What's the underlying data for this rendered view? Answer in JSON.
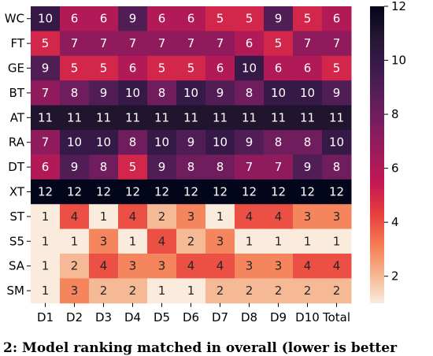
{
  "chart_data": {
    "type": "heatmap",
    "rows": [
      "WC",
      "FT",
      "GE",
      "BT",
      "AT",
      "RA",
      "DT",
      "XT",
      "ST",
      "S5",
      "SA",
      "SM"
    ],
    "columns": [
      "D1",
      "D2",
      "D3",
      "D4",
      "D5",
      "D6",
      "D7",
      "D8",
      "D9",
      "D10",
      "Total"
    ],
    "values": [
      [
        10,
        6,
        6,
        9,
        6,
        6,
        5,
        5,
        9,
        5,
        6
      ],
      [
        5,
        7,
        7,
        7,
        7,
        7,
        7,
        6,
        5,
        7,
        7
      ],
      [
        9,
        5,
        5,
        6,
        5,
        5,
        6,
        10,
        6,
        6,
        5
      ],
      [
        7,
        8,
        9,
        10,
        8,
        10,
        9,
        8,
        10,
        10,
        9
      ],
      [
        11,
        11,
        11,
        11,
        11,
        11,
        11,
        11,
        11,
        11,
        11
      ],
      [
        7,
        10,
        10,
        8,
        10,
        9,
        10,
        9,
        8,
        8,
        10
      ],
      [
        6,
        9,
        8,
        5,
        9,
        8,
        8,
        7,
        7,
        9,
        8
      ],
      [
        12,
        12,
        12,
        12,
        12,
        12,
        12,
        12,
        12,
        12,
        12
      ],
      [
        1,
        4,
        1,
        4,
        2,
        3,
        1,
        4,
        4,
        3,
        3
      ],
      [
        1,
        1,
        3,
        1,
        4,
        2,
        3,
        1,
        1,
        1,
        1
      ],
      [
        1,
        2,
        4,
        3,
        3,
        4,
        4,
        3,
        3,
        4,
        4
      ],
      [
        1,
        3,
        2,
        2,
        1,
        1,
        2,
        2,
        2,
        2,
        2
      ]
    ],
    "colorbar": {
      "colormap": "rocket_r",
      "range": [
        1,
        12
      ],
      "ticks": [
        2,
        4,
        6,
        8,
        10,
        12
      ]
    },
    "annotations": true,
    "grid": false,
    "legend_position": "right"
  },
  "caption": {
    "text": "2: Model ranking matched in overall (lower is better"
  }
}
